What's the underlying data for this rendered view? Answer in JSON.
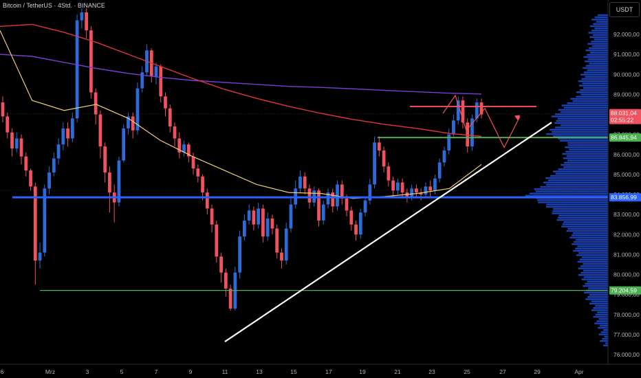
{
  "header": {
    "symbol": "Bitcoin / TetherUS · 4Std. · BINANCE"
  },
  "price_axis": {
    "currency": "USDT"
  },
  "colors": {
    "background": "#000000",
    "up": "#2e6bd8",
    "down": "#f0525f",
    "ma_slow": "#7b3fd6",
    "ma_mid": "#e0353b",
    "ma_fast": "#f2cf77",
    "trendline": "#ffffff",
    "resistance": "#f0525f",
    "support_green": "#4caf50",
    "support_blue": "#2962ff",
    "volume_profile": "#1f4fd8"
  },
  "chart_data": {
    "type": "candlestick",
    "title": "Bitcoin / TetherUS · 4Std. · BINANCE",
    "ylim": [
      76000,
      93000
    ],
    "y_ticks": [
      "92.000,00",
      "91.000,00",
      "90.000,00",
      "89.000,00",
      "88.000,00",
      "87.000,00",
      "86.000,00",
      "85.000,00",
      "84.000,00",
      "83.000,00",
      "82.000,00",
      "81.000,00",
      "80.000,00",
      "79.000,00",
      "78.000,00",
      "77.000,00",
      "76.000,00"
    ],
    "x_ticks": [
      "6",
      "Mrz",
      "3",
      "5",
      "7",
      "9",
      "11",
      "13",
      "15",
      "17",
      "19",
      "21",
      "23",
      "25",
      "27",
      "29",
      "Apr"
    ],
    "price_labels": [
      {
        "text": "88.031,04",
        "sub": "02:55:22",
        "value": 88031,
        "color": "#f0525f"
      },
      {
        "text": "86.845,94",
        "value": 86846,
        "color": "#4caf50"
      },
      {
        "text": "83.856,99",
        "value": 83857,
        "color": "#2962ff"
      },
      {
        "text": "79.204,59",
        "value": 79205,
        "color": "#4caf50"
      }
    ],
    "levels": [
      {
        "name": "resistance",
        "value": 88400
      },
      {
        "name": "support",
        "value": 86846
      },
      {
        "name": "support",
        "value": 83857
      },
      {
        "name": "support",
        "value": 79205
      }
    ],
    "trendline": [
      {
        "x": "Mar 11",
        "y": 76650
      },
      {
        "x": "Mar 27",
        "y": 87600
      }
    ],
    "projection": [
      88050,
      88950,
      87200,
      88300,
      86350,
      87900
    ],
    "ma_slow": [
      91000,
      90900,
      90600,
      90300,
      90050,
      89850,
      89700,
      89600,
      89500,
      89400,
      89350,
      89280,
      89200,
      89130,
      89060,
      89020
    ],
    "ma_mid": [
      92400,
      92500,
      92100,
      91600,
      91000,
      90400,
      89800,
      89250,
      88800,
      88400,
      88050,
      87750,
      87500,
      87300,
      87050,
      86900
    ],
    "ma_fast": [
      92200,
      88700,
      88200,
      88500,
      87800,
      86700,
      85900,
      85200,
      84500,
      84100,
      84050,
      83800,
      83900,
      84050,
      84300,
      85500
    ],
    "candles": [
      [
        88600,
        87900,
        88900,
        87600
      ],
      [
        87900,
        87100,
        88100,
        86800
      ],
      [
        87100,
        86300,
        87300,
        85900
      ],
      [
        86300,
        86800,
        87100,
        86100
      ],
      [
        86800,
        85900,
        87000,
        85500
      ],
      [
        85900,
        85200,
        86100,
        84900
      ],
      [
        85200,
        84400,
        85300,
        84200
      ],
      [
        84400,
        80700,
        84600,
        79500
      ],
      [
        80700,
        81100,
        81600,
        80300
      ],
      [
        81100,
        84300,
        84500,
        80900
      ],
      [
        84300,
        85100,
        85400,
        84000
      ],
      [
        85100,
        85800,
        86100,
        84900
      ],
      [
        85800,
        86500,
        86800,
        85500
      ],
      [
        86500,
        87300,
        87600,
        86200
      ],
      [
        87300,
        86800,
        87600,
        86400
      ],
      [
        86800,
        87800,
        88100,
        86600
      ],
      [
        87800,
        92700,
        93000,
        87600
      ],
      [
        92700,
        93100,
        93300,
        92300
      ],
      [
        93100,
        92200,
        93300,
        91800
      ],
      [
        92200,
        89100,
        92400,
        88800
      ],
      [
        89100,
        88000,
        89300,
        87500
      ],
      [
        88000,
        86400,
        88200,
        85800
      ],
      [
        86400,
        85100,
        86600,
        84600
      ],
      [
        85100,
        84100,
        85400,
        83100
      ],
      [
        84100,
        83600,
        84500,
        82600
      ],
      [
        83600,
        85700,
        85900,
        83400
      ],
      [
        85700,
        87300,
        87500,
        85600
      ],
      [
        87300,
        87900,
        88100,
        87000
      ],
      [
        87900,
        87200,
        88100,
        86800
      ],
      [
        87200,
        89300,
        89600,
        87000
      ],
      [
        89300,
        90100,
        90400,
        89100
      ],
      [
        90100,
        91200,
        91500,
        89900
      ],
      [
        91200,
        89900,
        91300,
        89600
      ],
      [
        89900,
        90400,
        90600,
        89500
      ],
      [
        90400,
        88900,
        90500,
        88600
      ],
      [
        88900,
        88300,
        89100,
        87900
      ],
      [
        88300,
        87400,
        88500,
        87100
      ],
      [
        87400,
        86800,
        87600,
        86400
      ],
      [
        86800,
        86100,
        87100,
        85800
      ],
      [
        86100,
        86500,
        86700,
        85900
      ],
      [
        86500,
        85900,
        86600,
        85600
      ],
      [
        85900,
        85300,
        86100,
        85000
      ],
      [
        85300,
        84900,
        85500,
        84600
      ],
      [
        84900,
        84100,
        85000,
        83700
      ],
      [
        84100,
        83300,
        84300,
        83000
      ],
      [
        83300,
        82500,
        83500,
        82100
      ],
      [
        82500,
        80900,
        82700,
        80600
      ],
      [
        80900,
        80100,
        81100,
        79600
      ],
      [
        80100,
        79300,
        80300,
        78900
      ],
      [
        79300,
        78300,
        79500,
        78200
      ],
      [
        78300,
        80100,
        80400,
        78200
      ],
      [
        80100,
        81900,
        82200,
        79800
      ],
      [
        81900,
        82700,
        83000,
        81700
      ],
      [
        82700,
        83200,
        83500,
        82500
      ],
      [
        83200,
        82500,
        83400,
        82200
      ],
      [
        82500,
        83300,
        83600,
        82300
      ],
      [
        83300,
        81900,
        83500,
        81600
      ],
      [
        81900,
        82800,
        83100,
        81700
      ],
      [
        82800,
        82300,
        83000,
        82000
      ],
      [
        82300,
        81100,
        82500,
        80800
      ],
      [
        81100,
        80700,
        81300,
        80300
      ],
      [
        80700,
        82300,
        82600,
        80500
      ],
      [
        82300,
        83500,
        83800,
        82100
      ],
      [
        83500,
        84300,
        84700,
        83300
      ],
      [
        84300,
        84900,
        85200,
        84100
      ],
      [
        84900,
        84300,
        85100,
        84000
      ],
      [
        84300,
        83600,
        84500,
        83300
      ],
      [
        83600,
        84200,
        84400,
        83400
      ],
      [
        84200,
        82700,
        84300,
        82400
      ],
      [
        82700,
        83500,
        83700,
        82500
      ],
      [
        83500,
        84100,
        84300,
        83300
      ],
      [
        84100,
        83400,
        84300,
        83100
      ],
      [
        83400,
        84500,
        84700,
        83200
      ],
      [
        84500,
        83800,
        84700,
        83500
      ],
      [
        83800,
        83200,
        84000,
        82900
      ],
      [
        83200,
        82500,
        83400,
        82200
      ],
      [
        82500,
        82000,
        82700,
        81700
      ],
      [
        82000,
        83100,
        83300,
        81800
      ],
      [
        83100,
        83700,
        83900,
        82900
      ],
      [
        83700,
        84500,
        84800,
        83500
      ],
      [
        84500,
        86600,
        86900,
        84300
      ],
      [
        86600,
        86200,
        86900,
        85900
      ],
      [
        86200,
        85400,
        86400,
        85100
      ],
      [
        85400,
        84700,
        85600,
        84400
      ],
      [
        84700,
        84200,
        84900,
        83900
      ],
      [
        84200,
        84600,
        84800,
        84000
      ],
      [
        84600,
        84100,
        84800,
        83800
      ],
      [
        84100,
        83900,
        84300,
        83600
      ],
      [
        83900,
        84300,
        84500,
        83700
      ],
      [
        84300,
        84100,
        84500,
        83800
      ],
      [
        84100,
        84000,
        84300,
        83700
      ],
      [
        84000,
        84400,
        84600,
        83800
      ],
      [
        84400,
        84200,
        84700,
        83900
      ],
      [
        84200,
        84800,
        85000,
        84000
      ],
      [
        84800,
        85600,
        85800,
        84600
      ],
      [
        85600,
        86200,
        86400,
        85400
      ],
      [
        86200,
        87000,
        87300,
        86000
      ],
      [
        87000,
        87700,
        88000,
        86800
      ],
      [
        87700,
        88700,
        88900,
        87500
      ],
      [
        88700,
        87600,
        88900,
        87300
      ],
      [
        87600,
        86400,
        87800,
        86100
      ],
      [
        86400,
        87800,
        88000,
        86200
      ],
      [
        87800,
        88600,
        88800,
        87600
      ],
      [
        88600,
        88000,
        88800,
        87800
      ]
    ]
  }
}
